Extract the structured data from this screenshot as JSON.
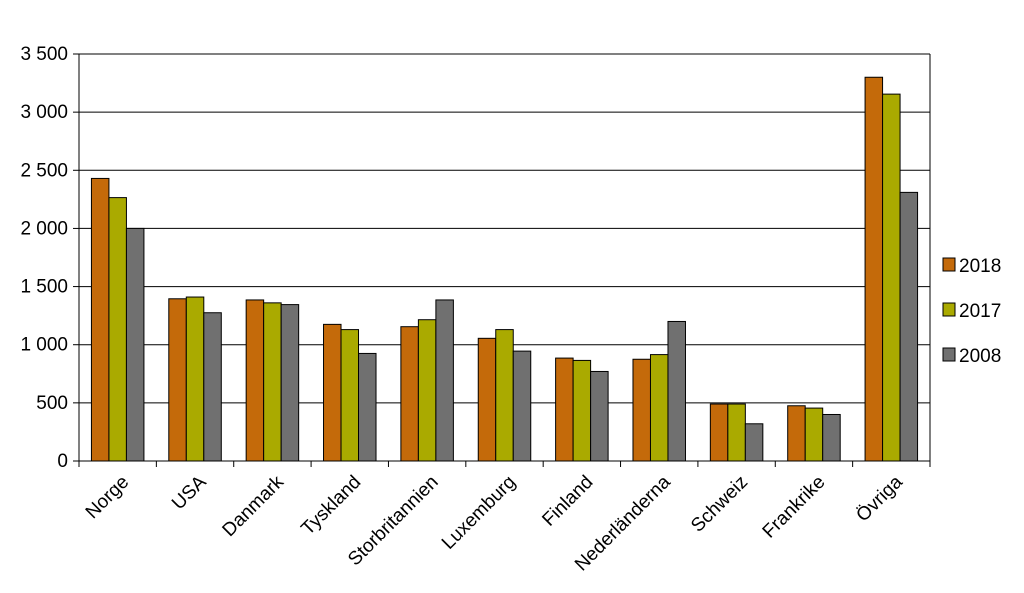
{
  "chart_data": {
    "type": "bar",
    "title": "",
    "xlabel": "",
    "ylabel": "",
    "ylim": [
      0,
      3500
    ],
    "yticks": [
      0,
      500,
      1000,
      1500,
      2000,
      2500,
      3000,
      3500
    ],
    "ytick_labels": [
      "0",
      "500",
      "1 000",
      "1 500",
      "2 000",
      "2 500",
      "3 000",
      "3 500"
    ],
    "grid": true,
    "legend_position": "right",
    "categories": [
      "Norge",
      "USA",
      "Danmark",
      "Tyskland",
      "Storbritannien",
      "Luxemburg",
      "Finland",
      "Nederländerna",
      "Schweiz",
      "Frankrike",
      "Övriga"
    ],
    "series": [
      {
        "name": "2018",
        "color": "#C46A0A",
        "values": [
          2430,
          1395,
          1385,
          1175,
          1155,
          1055,
          885,
          875,
          490,
          475,
          3300
        ]
      },
      {
        "name": "2017",
        "color": "#AAAA00",
        "values": [
          2265,
          1410,
          1360,
          1130,
          1215,
          1130,
          865,
          915,
          490,
          455,
          3155
        ]
      },
      {
        "name": "2008",
        "color": "#707070",
        "values": [
          2000,
          1275,
          1345,
          925,
          1385,
          945,
          770,
          1200,
          320,
          400,
          2310
        ]
      }
    ]
  }
}
